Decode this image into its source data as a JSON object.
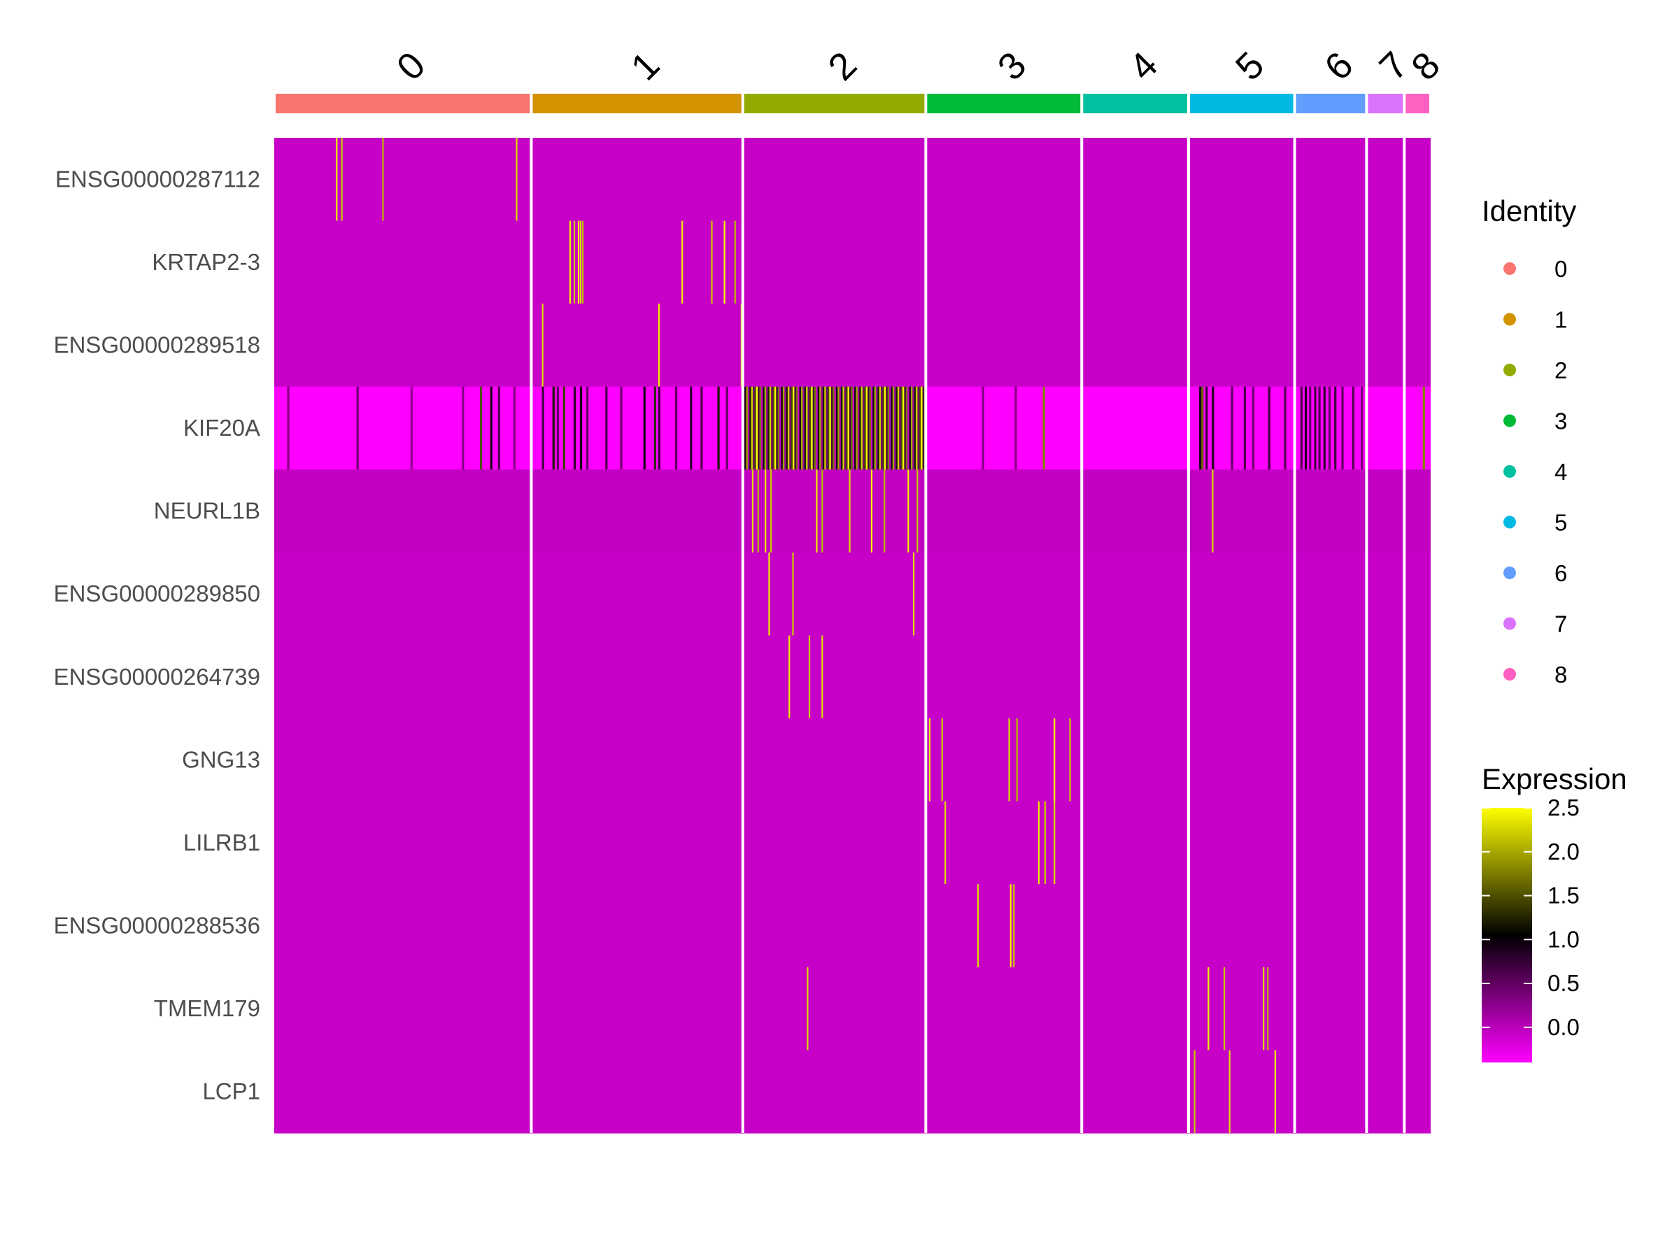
{
  "chart_data": {
    "type": "heatmap",
    "title": "",
    "xlabel": "",
    "ylabel": "",
    "clusters": [
      {
        "id": "0",
        "color": "#F8766D",
        "cells": 361
      },
      {
        "id": "1",
        "color": "#D39200",
        "cells": 297
      },
      {
        "id": "2",
        "color": "#93AA00",
        "cells": 257
      },
      {
        "id": "3",
        "color": "#00BA38",
        "cells": 219
      },
      {
        "id": "4",
        "color": "#00C19F",
        "cells": 150
      },
      {
        "id": "5",
        "color": "#00B9E3",
        "cells": 149
      },
      {
        "id": "6",
        "color": "#619CFF",
        "cells": 101
      },
      {
        "id": "7",
        "color": "#DB72FB",
        "cells": 53
      },
      {
        "id": "8",
        "color": "#FF61C3",
        "cells": 37
      }
    ],
    "genes": [
      {
        "name": "ENSG00000287112",
        "baseline": -0.08,
        "expressed": [
          [
            0,
            0.24,
            2.4
          ],
          [
            0,
            0.26,
            2.2
          ],
          [
            0,
            0.42,
            2.1
          ],
          [
            0,
            0.94,
            2.3
          ]
        ]
      },
      {
        "name": "KRTAP2-3",
        "baseline": -0.08,
        "expressed": [
          [
            1,
            0.18,
            2.4
          ],
          [
            1,
            0.2,
            2.2
          ],
          [
            1,
            0.22,
            2.5
          ],
          [
            1,
            0.23,
            2.3
          ],
          [
            1,
            0.24,
            2.1
          ],
          [
            1,
            0.71,
            2.4
          ],
          [
            1,
            0.85,
            2.2
          ],
          [
            1,
            0.91,
            2.5
          ],
          [
            1,
            0.96,
            2.1
          ]
        ]
      },
      {
        "name": "ENSG00000289518",
        "baseline": -0.08,
        "expressed": [
          [
            1,
            0.05,
            2.3
          ],
          [
            1,
            0.6,
            2.4
          ],
          [
            1,
            0.99,
            2.2
          ]
        ]
      },
      {
        "name": "KIF20A",
        "baseline": -0.4,
        "expressed": [
          [
            0,
            0.05,
            0.3
          ],
          [
            0,
            0.32,
            0.4
          ],
          [
            0,
            0.53,
            0.2
          ],
          [
            0,
            0.73,
            0.3
          ],
          [
            0,
            0.8,
            1.5
          ],
          [
            0,
            0.84,
            0.9
          ],
          [
            0,
            0.87,
            0.6
          ],
          [
            0,
            0.93,
            0.3
          ],
          [
            1,
            0.05,
            0.7
          ],
          [
            1,
            0.1,
            1.2
          ],
          [
            1,
            0.12,
            0.5
          ],
          [
            1,
            0.15,
            1.4
          ],
          [
            1,
            0.2,
            0.8
          ],
          [
            1,
            0.23,
            1.1
          ],
          [
            1,
            0.26,
            0.5
          ],
          [
            1,
            0.35,
            0.6
          ],
          [
            1,
            0.42,
            0.4
          ],
          [
            1,
            0.53,
            0.9
          ],
          [
            1,
            0.58,
            1.3
          ],
          [
            1,
            0.6,
            0.7
          ],
          [
            1,
            0.68,
            0.5
          ],
          [
            1,
            0.75,
            0.8
          ],
          [
            1,
            0.8,
            0.6
          ],
          [
            1,
            0.88,
            1.2
          ],
          [
            1,
            0.92,
            0.5
          ],
          [
            3,
            0.36,
            0.3
          ],
          [
            3,
            0.57,
            0.3
          ],
          [
            3,
            0.75,
            1.8
          ],
          [
            5,
            0.1,
            0.9
          ],
          [
            5,
            0.12,
            1.6
          ],
          [
            5,
            0.16,
            0.7
          ],
          [
            5,
            0.22,
            0.9
          ],
          [
            5,
            0.4,
            0.5
          ],
          [
            5,
            0.52,
            0.6
          ],
          [
            5,
            0.6,
            0.4
          ],
          [
            5,
            0.75,
            0.7
          ],
          [
            5,
            0.9,
            0.6
          ],
          [
            6,
            0.08,
            0.6
          ],
          [
            6,
            0.14,
            0.9
          ],
          [
            6,
            0.2,
            0.5
          ],
          [
            6,
            0.27,
            0.7
          ],
          [
            6,
            0.33,
            0.6
          ],
          [
            6,
            0.4,
            0.8
          ],
          [
            6,
            0.47,
            0.5
          ],
          [
            6,
            0.55,
            0.7
          ],
          [
            6,
            0.65,
            0.5
          ],
          [
            6,
            0.8,
            0.6
          ],
          [
            6,
            0.92,
            0.4
          ],
          [
            8,
            0.7,
            1.8
          ]
        ]
      },
      {
        "name": "NEURL1B",
        "baseline": -0.05,
        "expressed": [
          [
            2,
            0.05,
            2.3
          ],
          [
            2,
            0.08,
            2.1
          ],
          [
            2,
            0.12,
            2.4
          ],
          [
            2,
            0.15,
            2.2
          ],
          [
            2,
            0.4,
            2.4
          ],
          [
            2,
            0.43,
            2.1
          ],
          [
            2,
            0.58,
            2.3
          ],
          [
            2,
            0.7,
            2.5
          ],
          [
            2,
            0.77,
            2.1
          ],
          [
            2,
            0.9,
            2.4
          ],
          [
            2,
            0.95,
            2.2
          ],
          [
            5,
            0.22,
            2.3
          ]
        ]
      },
      {
        "name": "ENSG00000289850",
        "baseline": -0.08,
        "expressed": [
          [
            2,
            0.14,
            2.4
          ],
          [
            2,
            0.27,
            2.2
          ],
          [
            2,
            0.93,
            2.3
          ]
        ]
      },
      {
        "name": "ENSG00000264739",
        "baseline": -0.08,
        "expressed": [
          [
            2,
            0.25,
            2.4
          ],
          [
            2,
            0.36,
            2.2
          ],
          [
            2,
            0.43,
            2.3
          ]
        ]
      },
      {
        "name": "GNG13",
        "baseline": -0.08,
        "expressed": [
          [
            3,
            0.02,
            2.4
          ],
          [
            3,
            0.1,
            2.2
          ],
          [
            3,
            0.53,
            2.3
          ],
          [
            3,
            0.58,
            2.1
          ],
          [
            3,
            0.82,
            2.5
          ],
          [
            3,
            0.92,
            2.2
          ]
        ]
      },
      {
        "name": "LILRB1",
        "baseline": -0.08,
        "expressed": [
          [
            3,
            0.12,
            2.3
          ],
          [
            3,
            0.72,
            2.4
          ],
          [
            3,
            0.76,
            2.2
          ],
          [
            3,
            0.82,
            2.3
          ]
        ]
      },
      {
        "name": "ENSG00000288536",
        "baseline": -0.08,
        "expressed": [
          [
            3,
            0.33,
            2.3
          ],
          [
            3,
            0.54,
            2.4
          ],
          [
            3,
            0.56,
            2.2
          ]
        ]
      },
      {
        "name": "TMEM179",
        "baseline": -0.08,
        "expressed": [
          [
            2,
            0.35,
            2.3
          ],
          [
            5,
            0.18,
            2.4
          ],
          [
            5,
            0.33,
            2.2
          ],
          [
            5,
            0.7,
            2.3
          ],
          [
            5,
            0.74,
            2.1
          ]
        ]
      },
      {
        "name": "LCP1",
        "baseline": -0.08,
        "expressed": [
          [
            5,
            0.05,
            2.2
          ],
          [
            5,
            0.38,
            2.3
          ],
          [
            5,
            0.81,
            2.4
          ]
        ]
      }
    ],
    "legend_identity": {
      "title": "Identity",
      "items": [
        {
          "label": "0",
          "color": "#F8766D"
        },
        {
          "label": "1",
          "color": "#D39200"
        },
        {
          "label": "2",
          "color": "#93AA00"
        },
        {
          "label": "3",
          "color": "#00BA38"
        },
        {
          "label": "4",
          "color": "#00C19F"
        },
        {
          "label": "5",
          "color": "#00B9E3"
        },
        {
          "label": "6",
          "color": "#619CFF"
        },
        {
          "label": "7",
          "color": "#DB72FB"
        },
        {
          "label": "8",
          "color": "#FF61C3"
        }
      ]
    },
    "legend_expression": {
      "title": "Expression",
      "range": [
        -0.4,
        2.5
      ],
      "ticks": [
        "2.5",
        "2.0",
        "1.5",
        "1.0",
        "0.5",
        "0.0"
      ],
      "tick_values": [
        2.5,
        2.0,
        1.5,
        1.0,
        0.5,
        0.0
      ],
      "colors": [
        "#FF00FF",
        "#000000",
        "#FFFF00"
      ]
    },
    "legend_placement": "right",
    "grid": false
  }
}
